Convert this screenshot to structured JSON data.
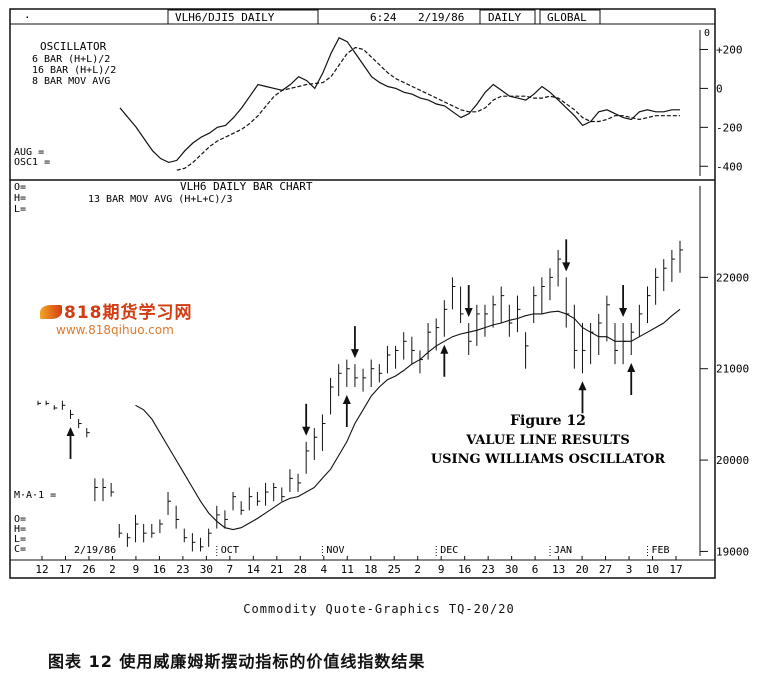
{
  "header": {
    "symbol": "VLH6/DJI5 DAILY",
    "time": "6:24",
    "date": "2/19/86",
    "period": "DAILY",
    "mode": "GLOBAL",
    "dot": "·"
  },
  "oscillator_panel": {
    "title": "OSCILLATOR",
    "line1": "6 BAR  (H+L)/2",
    "line2": "16 BAR  (H+L)/2",
    "line3": "8 BAR MOV AVG",
    "aug": "AUG =",
    "osc1": "OSC1 =",
    "zero_marker": "0",
    "y_ticks": [
      "+200",
      "0",
      "-200",
      "-400"
    ]
  },
  "price_panel": {
    "o": "O=",
    "h": "H=",
    "l": "L=",
    "title": "VLH6 DAILY BAR CHART",
    "subtitle": "13 BAR MOV AVG  (H+L+C)/3",
    "ma": "M·A·1 =",
    "o2": "O=",
    "h2": "H=",
    "l2": "L=",
    "c2": "C=",
    "start_date": "2/19/86",
    "y_ticks": [
      "22000",
      "21000",
      "20000",
      "19000"
    ],
    "months": [
      "OCT",
      "NOV",
      "DEC",
      "JAN",
      "FEB"
    ]
  },
  "x_axis": {
    "days": [
      "12",
      "17",
      "26",
      "2",
      "9",
      "16",
      "23",
      "30",
      "7",
      "14",
      "21",
      "28",
      "4",
      "11",
      "18",
      "25",
      "2",
      "9",
      "16",
      "23",
      "30",
      "6",
      "13",
      "20",
      "27",
      "3",
      "10",
      "17"
    ]
  },
  "figure": {
    "line1": "Figure 12",
    "line2": "VALUE LINE RESULTS",
    "line3": "USING WILLIAMS OSCILLATOR"
  },
  "watermark": {
    "logo": "818期货学习网",
    "url": "www.818qihuo.com"
  },
  "source": "Commodity Quote-Graphics   TQ-20/20",
  "caption": "图表 12   使用威廉姆斯摆动指标的价值线指数结果",
  "chart_data": [
    {
      "type": "line",
      "name": "oscillator",
      "x_label": "trading day",
      "ylim": [
        -450,
        300
      ],
      "series": [
        {
          "values": [
            -100,
            -150,
            -200,
            -260,
            -320,
            -360,
            -380,
            -370,
            -320,
            -280,
            -250,
            -230,
            -200,
            -190,
            -150,
            -100,
            -40,
            20,
            10,
            0,
            -10,
            20,
            60,
            40,
            0,
            80,
            180,
            260,
            240,
            180,
            120,
            60,
            30,
            10,
            0,
            -20,
            -30,
            -50,
            -60,
            -80,
            -90,
            -120,
            -150,
            -130,
            -80,
            -20,
            20,
            -10,
            -40,
            -50,
            -60,
            -30,
            10,
            -20,
            -60,
            -100,
            -140,
            -190,
            -170,
            -120,
            -110,
            -130,
            -150,
            -160,
            -120,
            -110,
            -120,
            -120,
            -110,
            -110
          ]
        },
        {
          "values": [
            null,
            null,
            null,
            null,
            null,
            null,
            null,
            -420,
            -410,
            -380,
            -340,
            -300,
            -270,
            -250,
            -230,
            -210,
            -180,
            -140,
            -90,
            -40,
            -10,
            0,
            10,
            20,
            25,
            30,
            60,
            120,
            180,
            210,
            200,
            160,
            120,
            80,
            50,
            30,
            10,
            -10,
            -30,
            -50,
            -70,
            -90,
            -110,
            -120,
            -120,
            -100,
            -60,
            -40,
            -40,
            -40,
            -40,
            -50,
            -50,
            -40,
            -50,
            -80,
            -110,
            -150,
            -170,
            -170,
            -160,
            -140,
            -140,
            -150,
            -160,
            -150,
            -140,
            -140,
            -140,
            -140
          ]
        }
      ]
    },
    {
      "type": "bar",
      "name": "price_bars",
      "ylim": [
        18950,
        23000
      ],
      "high": [
        20650,
        20650,
        20600,
        20650,
        20550,
        20450,
        20350,
        19800,
        19800,
        19750,
        19300,
        19200,
        19400,
        19300,
        19300,
        19350,
        19650,
        19500,
        19250,
        19200,
        19150,
        19250,
        19500,
        19450,
        19650,
        19550,
        19700,
        19650,
        19750,
        19750,
        19700,
        19900,
        19850,
        20200,
        20350,
        20500,
        20900,
        21050,
        21100,
        21050,
        21000,
        21100,
        21050,
        21250,
        21250,
        21400,
        21350,
        21200,
        21500,
        21550,
        21750,
        22000,
        21900,
        21500,
        21700,
        21700,
        21800,
        21900,
        21700,
        21800,
        21400,
        21900,
        22000,
        22100,
        22300,
        22000,
        21700,
        21500,
        21500,
        21600,
        21800,
        21500,
        21500,
        21500,
        21700,
        21900,
        22100,
        22200,
        22300,
        22400
      ],
      "low": [
        20600,
        20600,
        20550,
        20550,
        20450,
        20350,
        20250,
        19550,
        19550,
        19600,
        19150,
        19050,
        19100,
        19100,
        19150,
        19200,
        19400,
        19250,
        19100,
        19000,
        19000,
        19050,
        19250,
        19250,
        19450,
        19400,
        19450,
        19500,
        19500,
        19550,
        19550,
        19650,
        19650,
        19850,
        20000,
        20100,
        20500,
        20700,
        20800,
        20800,
        20750,
        20800,
        20850,
        20950,
        21000,
        21100,
        21050,
        20950,
        21100,
        21200,
        21350,
        21650,
        21500,
        21150,
        21250,
        21350,
        21450,
        21500,
        21350,
        21400,
        21000,
        21500,
        21600,
        21750,
        21900,
        21450,
        21000,
        20950,
        21050,
        21150,
        21300,
        21050,
        21050,
        21150,
        21350,
        21500,
        21700,
        21850,
        21950,
        22050
      ],
      "close": [
        20620,
        20620,
        20570,
        20600,
        20500,
        20400,
        20300,
        19700,
        19700,
        19650,
        19200,
        19150,
        19300,
        19200,
        19200,
        19300,
        19550,
        19350,
        19150,
        19100,
        19050,
        19200,
        19400,
        19350,
        19600,
        19450,
        19600,
        19550,
        19650,
        19700,
        19600,
        19800,
        19750,
        20100,
        20250,
        20400,
        20800,
        20950,
        21000,
        20900,
        20900,
        21000,
        20950,
        21150,
        21200,
        21300,
        21200,
        21100,
        21400,
        21450,
        21650,
        21900,
        21600,
        21300,
        21600,
        21600,
        21700,
        21800,
        21500,
        21650,
        21250,
        21800,
        21900,
        22000,
        22200,
        21600,
        21200,
        21200,
        21400,
        21500,
        21700,
        21200,
        21300,
        21400,
        21600,
        21800,
        22000,
        22100,
        22200,
        22300
      ]
    },
    {
      "type": "line",
      "name": "13 BAR MOV AVG",
      "values": [
        null,
        null,
        null,
        null,
        null,
        null,
        null,
        null,
        null,
        null,
        null,
        null,
        20600,
        20550,
        20450,
        20300,
        20150,
        20000,
        19850,
        19700,
        19550,
        19420,
        19330,
        19260,
        19240,
        19260,
        19310,
        19360,
        19420,
        19480,
        19540,
        19580,
        19600,
        19650,
        19700,
        19800,
        19900,
        20050,
        20200,
        20400,
        20550,
        20700,
        20800,
        20880,
        20920,
        20980,
        21050,
        21100,
        21180,
        21250,
        21300,
        21350,
        21380,
        21400,
        21420,
        21450,
        21480,
        21500,
        21530,
        21550,
        21580,
        21600,
        21600,
        21620,
        21630,
        21600,
        21550,
        21450,
        21400,
        21350,
        21350,
        21300,
        21300,
        21300,
        21350,
        21400,
        21450,
        21500,
        21580,
        21650
      ]
    }
  ],
  "arrows": {
    "up_at_bar": [
      4,
      38,
      50,
      67,
      73
    ],
    "down_at_bar": [
      33,
      39,
      53,
      65,
      72
    ]
  }
}
